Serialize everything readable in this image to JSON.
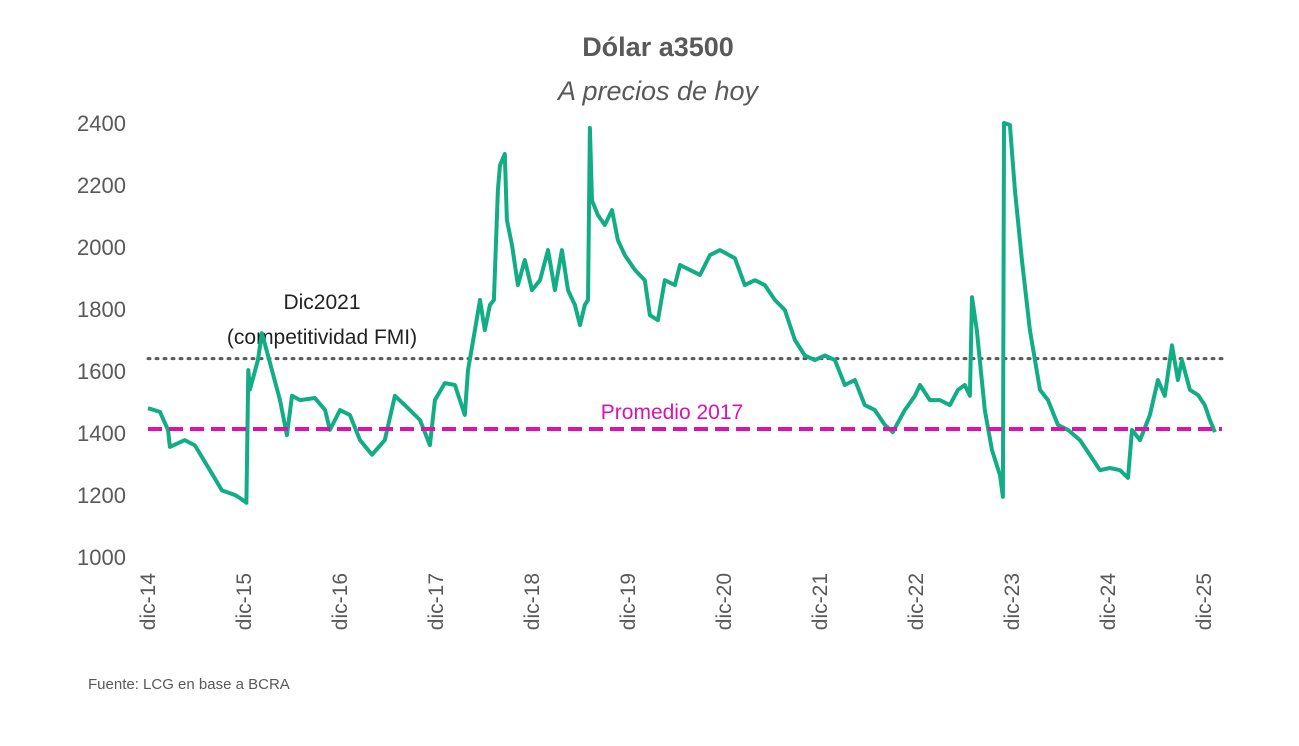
{
  "chart_data": {
    "type": "line",
    "title": "Dólar a3500",
    "subtitle": "A precios de hoy",
    "source": "Fuente: LCG  en base a BCRA",
    "ylim": [
      1000,
      2400
    ],
    "yticks": [
      1000,
      1200,
      1400,
      1600,
      1800,
      2000,
      2200,
      2400
    ],
    "xtick_labels": [
      "dic-14",
      "dic-15",
      "dic-16",
      "dic-17",
      "dic-18",
      "dic-19",
      "dic-20",
      "dic-21",
      "dic-22",
      "dic-23",
      "dic-24",
      "dic-25"
    ],
    "grid": false,
    "colors": {
      "series": "#12AD85",
      "reference_fmi": "#595959",
      "average_2017": "#DD10B0",
      "text": "#595959"
    },
    "reference_lines": [
      {
        "name": "Dic2021",
        "label_line2": "(competitividad FMI)",
        "value": 1640,
        "style": "dotted"
      },
      {
        "name": "Promedio 2017",
        "value": 1413,
        "style": "dashed"
      }
    ],
    "series": [
      {
        "points": [
          [
            "2014-12-01",
            1480
          ],
          [
            "2015-01-16",
            1468
          ],
          [
            "2015-02-16",
            1410
          ],
          [
            "2015-02-23",
            1355
          ],
          [
            "2015-04-19",
            1377
          ],
          [
            "2015-05-27",
            1360
          ],
          [
            "2015-07-23",
            1280
          ],
          [
            "2015-09-08",
            1215
          ],
          [
            "2015-10-27",
            1200
          ],
          [
            "2015-11-16",
            1190
          ],
          [
            "2015-12-10",
            1175
          ],
          [
            "2015-12-17",
            1603
          ],
          [
            "2015-12-23",
            1540
          ],
          [
            "2016-01-23",
            1635
          ],
          [
            "2016-02-08",
            1722
          ],
          [
            "2016-03-01",
            1650
          ],
          [
            "2016-04-16",
            1506
          ],
          [
            "2016-05-12",
            1393
          ],
          [
            "2016-06-01",
            1520
          ],
          [
            "2016-07-01",
            1506
          ],
          [
            "2016-08-27",
            1513
          ],
          [
            "2016-10-05",
            1474
          ],
          [
            "2016-10-23",
            1410
          ],
          [
            "2016-12-01",
            1474
          ],
          [
            "2017-01-08",
            1458
          ],
          [
            "2017-02-16",
            1377
          ],
          [
            "2017-04-01",
            1330
          ],
          [
            "2017-05-19",
            1377
          ],
          [
            "2017-06-27",
            1520
          ],
          [
            "2017-08-04",
            1490
          ],
          [
            "2017-10-01",
            1442
          ],
          [
            "2017-11-08",
            1361
          ],
          [
            "2017-11-27",
            1506
          ],
          [
            "2018-01-04",
            1561
          ],
          [
            "2018-02-12",
            1555
          ],
          [
            "2018-03-19",
            1458
          ],
          [
            "2018-04-01",
            1603
          ],
          [
            "2018-04-27",
            1732
          ],
          [
            "2018-05-16",
            1829
          ],
          [
            "2018-06-04",
            1732
          ],
          [
            "2018-06-23",
            1813
          ],
          [
            "2018-07-08",
            1829
          ],
          [
            "2018-07-23",
            2184
          ],
          [
            "2018-08-01",
            2264
          ],
          [
            "2018-08-19",
            2300
          ],
          [
            "2018-08-27",
            2087
          ],
          [
            "2018-09-16",
            2006
          ],
          [
            "2018-10-08",
            1877
          ],
          [
            "2018-11-04",
            1958
          ],
          [
            "2018-12-01",
            1861
          ],
          [
            "2019-01-01",
            1893
          ],
          [
            "2019-02-01",
            1990
          ],
          [
            "2019-02-27",
            1861
          ],
          [
            "2019-03-23",
            1990
          ],
          [
            "2019-04-16",
            1861
          ],
          [
            "2019-05-12",
            1813
          ],
          [
            "2019-06-01",
            1748
          ],
          [
            "2019-06-19",
            1813
          ],
          [
            "2019-07-01",
            1829
          ],
          [
            "2019-07-08",
            2384
          ],
          [
            "2019-07-16",
            2150
          ],
          [
            "2019-08-08",
            2103
          ],
          [
            "2019-09-04",
            2071
          ],
          [
            "2019-10-01",
            2119
          ],
          [
            "2019-10-23",
            2022
          ],
          [
            "2019-11-19",
            1974
          ],
          [
            "2019-12-27",
            1926
          ],
          [
            "2020-02-04",
            1893
          ],
          [
            "2020-02-23",
            1780
          ],
          [
            "2020-03-23",
            1764
          ],
          [
            "2020-04-19",
            1893
          ],
          [
            "2020-05-27",
            1877
          ],
          [
            "2020-06-16",
            1942
          ],
          [
            "2020-07-23",
            1926
          ],
          [
            "2020-09-01",
            1910
          ],
          [
            "2020-10-08",
            1974
          ],
          [
            "2020-11-16",
            1990
          ],
          [
            "2021-01-12",
            1964
          ],
          [
            "2021-02-19",
            1877
          ],
          [
            "2021-03-27",
            1893
          ],
          [
            "2021-05-04",
            1877
          ],
          [
            "2021-06-12",
            1829
          ],
          [
            "2021-07-19",
            1797
          ],
          [
            "2021-08-27",
            1700
          ],
          [
            "2021-10-04",
            1650
          ],
          [
            "2021-11-12",
            1635
          ],
          [
            "2021-12-19",
            1650
          ],
          [
            "2022-01-27",
            1635
          ],
          [
            "2022-03-04",
            1555
          ],
          [
            "2022-04-12",
            1571
          ],
          [
            "2022-05-19",
            1490
          ],
          [
            "2022-06-27",
            1474
          ],
          [
            "2022-08-04",
            1426
          ],
          [
            "2022-09-04",
            1403
          ],
          [
            "2022-10-19",
            1474
          ],
          [
            "2022-11-27",
            1520
          ],
          [
            "2022-12-16",
            1555
          ],
          [
            "2023-01-23",
            1506
          ],
          [
            "2023-03-01",
            1506
          ],
          [
            "2023-04-08",
            1490
          ],
          [
            "2023-05-08",
            1539
          ],
          [
            "2023-06-04",
            1555
          ],
          [
            "2023-06-23",
            1520
          ],
          [
            "2023-07-01",
            1838
          ],
          [
            "2023-07-19",
            1732
          ],
          [
            "2023-08-19",
            1474
          ],
          [
            "2023-09-16",
            1345
          ],
          [
            "2023-10-16",
            1264
          ],
          [
            "2023-10-27",
            1194
          ],
          [
            "2023-11-01",
            2400
          ],
          [
            "2023-11-23",
            2394
          ],
          [
            "2023-12-12",
            2184
          ],
          [
            "2024-01-08",
            1958
          ],
          [
            "2024-02-08",
            1732
          ],
          [
            "2024-03-16",
            1539
          ],
          [
            "2024-04-16",
            1506
          ],
          [
            "2024-05-23",
            1426
          ],
          [
            "2024-07-01",
            1410
          ],
          [
            "2024-08-16",
            1377
          ],
          [
            "2024-09-23",
            1329
          ],
          [
            "2024-11-01",
            1280
          ],
          [
            "2024-12-08",
            1287
          ],
          [
            "2025-01-16",
            1280
          ],
          [
            "2025-02-16",
            1255
          ],
          [
            "2025-03-01",
            1410
          ],
          [
            "2025-04-01",
            1377
          ],
          [
            "2025-05-08",
            1458
          ],
          [
            "2025-06-08",
            1571
          ],
          [
            "2025-07-04",
            1520
          ],
          [
            "2025-08-01",
            1683
          ],
          [
            "2025-08-23",
            1571
          ],
          [
            "2025-09-08",
            1635
          ],
          [
            "2025-10-08",
            1539
          ],
          [
            "2025-11-08",
            1523
          ],
          [
            "2025-12-04",
            1490
          ],
          [
            "2025-12-23",
            1442
          ],
          [
            "2026-01-12",
            1403
          ]
        ]
      }
    ]
  }
}
